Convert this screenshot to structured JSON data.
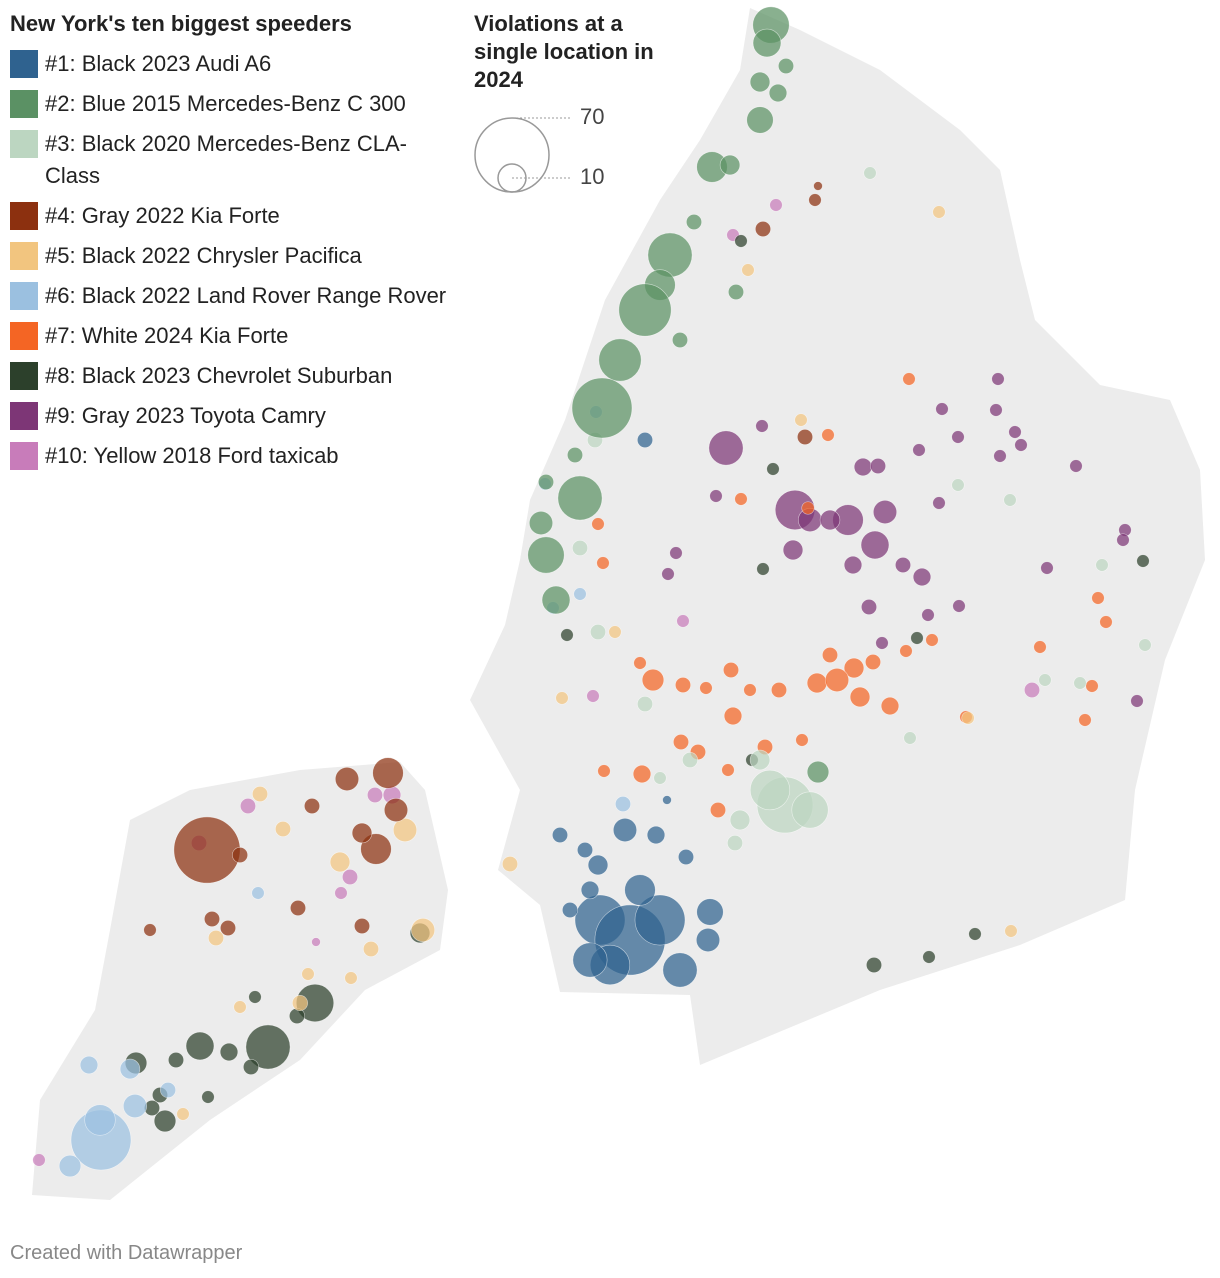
{
  "chart_data": {
    "type": "bubble-map",
    "title": "New York's ten biggest speeders",
    "size_legend_title": "Violations at a single location in 2024",
    "size_legend_values": [
      70,
      10
    ],
    "credit": "Created with Datawrapper",
    "series": [
      {
        "name": "#1: Black 2023 Audi A6",
        "color": "#2f628f",
        "values": [
          32,
          63,
          32,
          20,
          15,
          15,
          9,
          12,
          3,
          3,
          5,
          7,
          4,
          3,
          7,
          4,
          3,
          3,
          1
        ]
      },
      {
        "name": "#2: Blue 2015 Mercedes-Benz C 300",
        "color": "#5b9164",
        "values": [
          17,
          10,
          5,
          4,
          9,
          12,
          5,
          25,
          12,
          35,
          23,
          46,
          25,
          17,
          7,
          10,
          3,
          6,
          3,
          3,
          3,
          3,
          3
        ]
      },
      {
        "name": "#3: Black 2020 Mercedes-Benz CLA-Class",
        "color": "#bcd6c1",
        "values": [
          40,
          20,
          17,
          5,
          5,
          2,
          2,
          2,
          2,
          2,
          2,
          2,
          3,
          3,
          3,
          3,
          3,
          3,
          2,
          2
        ]
      },
      {
        "name": "#4: Gray 2022 Kia Forte",
        "color": "#8c300f",
        "values": [
          56,
          12,
          7,
          12,
          7,
          3,
          5,
          3,
          3,
          3,
          2,
          3,
          3,
          3,
          1,
          2,
          3
        ]
      },
      {
        "name": "#5: Black 2022 Chrysler Pacifica",
        "color": "#f2c57f",
        "values": [
          7,
          7,
          5,
          3,
          3,
          3,
          3,
          2,
          2,
          2,
          2,
          2,
          2,
          3,
          2,
          2,
          2,
          2,
          2,
          3
        ]
      },
      {
        "name": "#6: Black 2022 Land Rover Range Rover",
        "color": "#9bc0e0",
        "values": [
          46,
          12,
          7,
          6,
          4,
          5,
          3,
          2,
          3,
          2,
          2,
          2,
          2
        ]
      },
      {
        "name": "#7: White 2024 Kia Forte",
        "color": "#f46524",
        "values": [
          3,
          5,
          3,
          5,
          7,
          5,
          4,
          6,
          3,
          3,
          2,
          4,
          3,
          4,
          3,
          3,
          3,
          3,
          2,
          2,
          2,
          2,
          2,
          2,
          2,
          2,
          2,
          2,
          2,
          2,
          2,
          2,
          2,
          2,
          2,
          2,
          2
        ]
      },
      {
        "name": "#8: Black 2023 Chevrolet Suburban",
        "color": "#2c402b",
        "values": [
          25,
          18,
          10,
          6,
          6,
          4,
          3,
          3,
          3,
          3,
          2,
          3,
          2,
          3,
          2,
          2,
          2,
          2,
          2,
          2,
          2,
          2,
          2,
          5
        ]
      },
      {
        "name": "#9: Gray 2023 Toyota Camry",
        "color": "#7d3676",
        "values": [
          20,
          12,
          10,
          7,
          5,
          7,
          15,
          5,
          4,
          4,
          4,
          3,
          3,
          3,
          2,
          2,
          2,
          2,
          2,
          2,
          2,
          2,
          2,
          2,
          2,
          2,
          2,
          2,
          2,
          2,
          2,
          2,
          2,
          2,
          2
        ]
      },
      {
        "name": "#10: Yellow 2018 Ford taxicab",
        "color": "#c87cba",
        "values": [
          3,
          3,
          3,
          4,
          3,
          2,
          2,
          2,
          2,
          3,
          2,
          2,
          1
        ]
      }
    ]
  }
}
